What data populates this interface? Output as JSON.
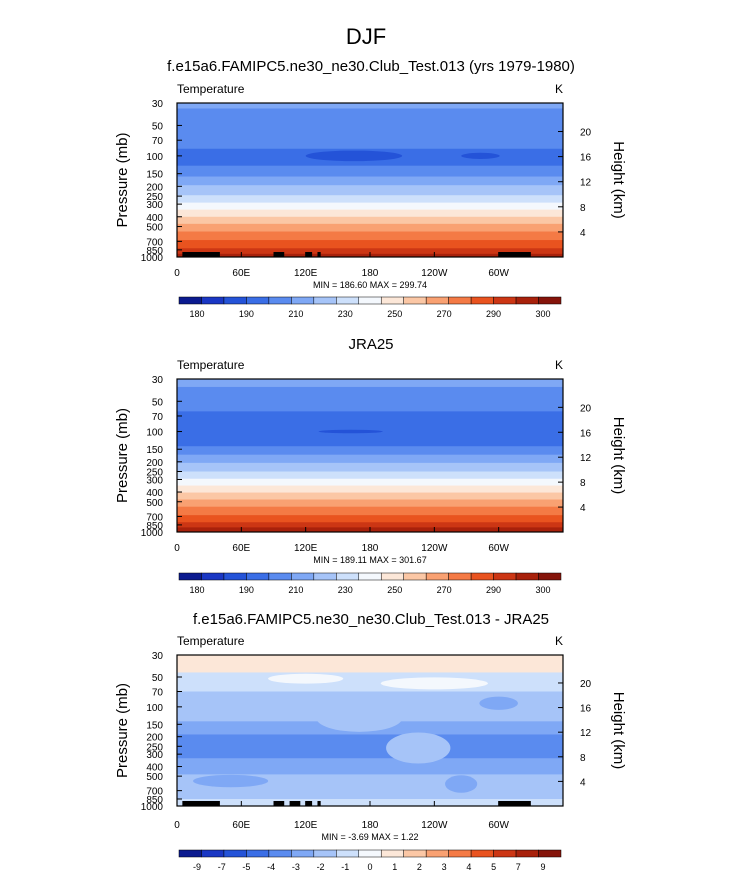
{
  "figure": {
    "title": "DJF",
    "panel_titles": [
      "f.e15a6.FAMIPC5.ne30_ne30.Club_Test.013 (yrs 1979-1980)",
      "JRA25",
      "f.e15a6.FAMIPC5.ne30_ne30.Club_Test.013 - JRA25"
    ]
  },
  "chart_data": [
    {
      "type": "heatmap",
      "title": "f.e15a6.FAMIPC5.ne30_ne30.Club_Test.013 (yrs 1979-1980)",
      "variable": "Temperature",
      "units": "K",
      "ylabel": "Pressure (mb)",
      "y2label": "Height (km)",
      "x_ticks": [
        "0",
        "60E",
        "120E",
        "180",
        "120W",
        "60W"
      ],
      "y_ticks": [
        "30",
        "50",
        "70",
        "100",
        "150",
        "200",
        "250",
        "300",
        "400",
        "500",
        "700",
        "850",
        "1000"
      ],
      "y2_ticks": [
        "20",
        "16",
        "12",
        "8",
        "4"
      ],
      "stats": "MIN = 186.60  MAX = 299.74",
      "colorbar_labels": [
        "180",
        "190",
        "210",
        "230",
        "250",
        "270",
        "290",
        "300"
      ],
      "colorbar_colors": [
        "#0b1a8f",
        "#1a37c4",
        "#2453d8",
        "#3a6ee6",
        "#5a8bef",
        "#7fa8f5",
        "#a6c4f8",
        "#cde0fb",
        "#f4f8fd",
        "#fce7d8",
        "#fbc7a5",
        "#f9a172",
        "#f47a45",
        "#e9531f",
        "#cc3614",
        "#a8210b",
        "#85140a"
      ],
      "bands": [
        {
          "p_top": 30,
          "p_bot": 34,
          "color_index": 5
        },
        {
          "p_top": 34,
          "p_bot": 85,
          "color_index": 4
        },
        {
          "p_top": 85,
          "p_bot": 125,
          "color_index": 3
        },
        {
          "p_top": 125,
          "p_bot": 160,
          "color_index": 4
        },
        {
          "p_top": 160,
          "p_bot": 195,
          "color_index": 5
        },
        {
          "p_top": 195,
          "p_bot": 245,
          "color_index": 6
        },
        {
          "p_top": 245,
          "p_bot": 290,
          "color_index": 7
        },
        {
          "p_top": 290,
          "p_bot": 340,
          "color_index": 8
        },
        {
          "p_top": 340,
          "p_bot": 400,
          "color_index": 9
        },
        {
          "p_top": 400,
          "p_bot": 470,
          "color_index": 10
        },
        {
          "p_top": 470,
          "p_bot": 560,
          "color_index": 11
        },
        {
          "p_top": 560,
          "p_bot": 680,
          "color_index": 12
        },
        {
          "p_top": 680,
          "p_bot": 820,
          "color_index": 13
        },
        {
          "p_top": 820,
          "p_bot": 930,
          "color_index": 14
        },
        {
          "p_top": 930,
          "p_bot": 1000,
          "color_index": 15
        }
      ],
      "features": [
        {
          "kind": "ellipse",
          "lon_c": 165,
          "lon_rx": 45,
          "p_c": 100,
          "p_ry": 12,
          "color_index": 2
        },
        {
          "kind": "ellipse",
          "lon_c": 283,
          "lon_rx": 18,
          "p_c": 100,
          "p_ry": 7,
          "color_index": 2
        }
      ],
      "topography": [
        [
          5,
          40
        ],
        [
          90,
          100
        ],
        [
          120,
          126
        ],
        [
          131,
          134
        ],
        [
          300,
          330
        ]
      ]
    },
    {
      "type": "heatmap",
      "title": "JRA25",
      "variable": "Temperature",
      "units": "K",
      "ylabel": "Pressure (mb)",
      "y2label": "Height (km)",
      "x_ticks": [
        "0",
        "60E",
        "120E",
        "180",
        "120W",
        "60W"
      ],
      "y_ticks": [
        "30",
        "50",
        "70",
        "100",
        "150",
        "200",
        "250",
        "300",
        "400",
        "500",
        "700",
        "850",
        "1000"
      ],
      "y2_ticks": [
        "20",
        "16",
        "12",
        "8",
        "4"
      ],
      "stats": "MIN = 189.11  MAX = 301.67",
      "colorbar_labels": [
        "180",
        "190",
        "210",
        "230",
        "250",
        "270",
        "290",
        "300"
      ],
      "colorbar_colors": [
        "#0b1a8f",
        "#1a37c4",
        "#2453d8",
        "#3a6ee6",
        "#5a8bef",
        "#7fa8f5",
        "#a6c4f8",
        "#cde0fb",
        "#f4f8fd",
        "#fce7d8",
        "#fbc7a5",
        "#f9a172",
        "#f47a45",
        "#e9531f",
        "#cc3614",
        "#a8210b",
        "#85140a"
      ],
      "bands": [
        {
          "p_top": 30,
          "p_bot": 36,
          "color_index": 5
        },
        {
          "p_top": 36,
          "p_bot": 63,
          "color_index": 4
        },
        {
          "p_top": 63,
          "p_bot": 140,
          "color_index": 3
        },
        {
          "p_top": 140,
          "p_bot": 170,
          "color_index": 4
        },
        {
          "p_top": 170,
          "p_bot": 205,
          "color_index": 5
        },
        {
          "p_top": 205,
          "p_bot": 250,
          "color_index": 6
        },
        {
          "p_top": 250,
          "p_bot": 295,
          "color_index": 7
        },
        {
          "p_top": 295,
          "p_bot": 345,
          "color_index": 8
        },
        {
          "p_top": 345,
          "p_bot": 405,
          "color_index": 9
        },
        {
          "p_top": 405,
          "p_bot": 475,
          "color_index": 10
        },
        {
          "p_top": 475,
          "p_bot": 560,
          "color_index": 11
        },
        {
          "p_top": 560,
          "p_bot": 680,
          "color_index": 12
        },
        {
          "p_top": 680,
          "p_bot": 800,
          "color_index": 13
        },
        {
          "p_top": 800,
          "p_bot": 900,
          "color_index": 14
        },
        {
          "p_top": 900,
          "p_bot": 1000,
          "color_index": 15
        }
      ],
      "features": [
        {
          "kind": "ellipse",
          "lon_c": 162,
          "lon_rx": 30,
          "p_c": 100,
          "p_ry": 4,
          "color_index": 2
        }
      ],
      "topography": []
    },
    {
      "type": "heatmap",
      "title": "f.e15a6.FAMIPC5.ne30_ne30.Club_Test.013 - JRA25",
      "variable": "Temperature",
      "units": "K",
      "ylabel": "Pressure (mb)",
      "y2label": "Height (km)",
      "x_ticks": [
        "0",
        "60E",
        "120E",
        "180",
        "120W",
        "60W"
      ],
      "y_ticks": [
        "30",
        "50",
        "70",
        "100",
        "150",
        "200",
        "250",
        "300",
        "400",
        "500",
        "700",
        "850",
        "1000"
      ],
      "y2_ticks": [
        "20",
        "16",
        "12",
        "8",
        "4"
      ],
      "stats": "MIN = -3.69  MAX =  1.22",
      "colorbar_labels": [
        "-9",
        "-7",
        "-5",
        "-4",
        "-3",
        "-2",
        "-1",
        "0",
        "1",
        "2",
        "3",
        "4",
        "5",
        "7",
        "9"
      ],
      "colorbar_colors": [
        "#0b1a8f",
        "#1a37c4",
        "#2453d8",
        "#3a6ee6",
        "#5a8bef",
        "#7fa8f5",
        "#a6c4f8",
        "#cde0fb",
        "#f4f8fd",
        "#fce7d8",
        "#fbc7a5",
        "#f9a172",
        "#f47a45",
        "#e9531f",
        "#cc3614",
        "#a8210b",
        "#85140a"
      ],
      "bands": [
        {
          "p_top": 30,
          "p_bot": 45,
          "color_index": 9
        },
        {
          "p_top": 45,
          "p_bot": 70,
          "color_index": 7
        },
        {
          "p_top": 70,
          "p_bot": 140,
          "color_index": 6
        },
        {
          "p_top": 140,
          "p_bot": 190,
          "color_index": 5
        },
        {
          "p_top": 190,
          "p_bot": 330,
          "color_index": 4
        },
        {
          "p_top": 330,
          "p_bot": 480,
          "color_index": 5
        },
        {
          "p_top": 480,
          "p_bot": 850,
          "color_index": 6
        },
        {
          "p_top": 850,
          "p_bot": 1000,
          "color_index": 7
        }
      ],
      "features": [
        {
          "kind": "ellipse",
          "lon_c": 120,
          "lon_rx": 35,
          "p_c": 52,
          "p_ry": 6,
          "color_index": 8
        },
        {
          "kind": "ellipse",
          "lon_c": 240,
          "lon_rx": 50,
          "p_c": 58,
          "p_ry": 8,
          "color_index": 8
        },
        {
          "kind": "ellipse",
          "lon_c": 300,
          "lon_rx": 18,
          "p_c": 92,
          "p_ry": 14,
          "color_index": 5
        },
        {
          "kind": "ellipse",
          "lon_c": 170,
          "lon_rx": 40,
          "p_c": 130,
          "p_ry": 40,
          "color_index": 6
        },
        {
          "kind": "ellipse",
          "lon_c": 225,
          "lon_rx": 30,
          "p_c": 260,
          "p_ry": 90,
          "color_index": 6
        },
        {
          "kind": "ellipse",
          "lon_c": 265,
          "lon_rx": 15,
          "p_c": 600,
          "p_ry": 120,
          "color_index": 5
        },
        {
          "kind": "ellipse",
          "lon_c": 50,
          "lon_rx": 35,
          "p_c": 560,
          "p_ry": 80,
          "color_index": 5
        }
      ],
      "topography": [
        [
          5,
          40
        ],
        [
          90,
          100
        ],
        [
          105,
          115
        ],
        [
          120,
          126
        ],
        [
          131,
          134
        ],
        [
          300,
          330
        ]
      ]
    }
  ]
}
